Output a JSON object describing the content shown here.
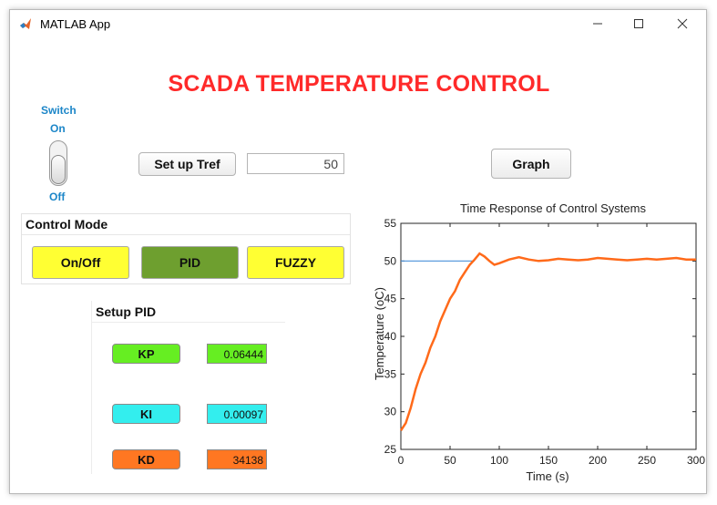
{
  "window": {
    "title": "MATLAB App",
    "icons": {
      "app": "matlab-logo-icon",
      "minimize": "minimize-icon",
      "maximize": "maximize-icon",
      "close": "close-icon"
    }
  },
  "header": {
    "title": "SCADA TEMPERATURE CONTROL",
    "color": "#ff2a2a"
  },
  "switch": {
    "label": "Switch",
    "on_label": "On",
    "off_label": "Off",
    "state": "Off"
  },
  "tref": {
    "button_label": "Set up Tref",
    "value": "50"
  },
  "graph_button": {
    "label": "Graph"
  },
  "control_mode": {
    "title": "Control Mode",
    "buttons": [
      {
        "label": "On/Off",
        "color": "#ffff33"
      },
      {
        "label": "PID",
        "color": "#6e9f2f",
        "selected": true
      },
      {
        "label": "FUZZY",
        "color": "#ffff33"
      }
    ]
  },
  "setup_pid": {
    "title": "Setup PID",
    "params": [
      {
        "label": "KP",
        "value": "0.06444",
        "color": "#66ee22"
      },
      {
        "label": "KI",
        "value": "0.00097",
        "color": "#33eeee"
      },
      {
        "label": "KD",
        "value": "34138",
        "color": "#ff7722"
      }
    ]
  },
  "chart_data": {
    "type": "line",
    "title": "Time Response of Control Systems",
    "xlabel": "Time (s)",
    "ylabel": "Temperature (oC)",
    "xlim": [
      0,
      300
    ],
    "ylim": [
      25,
      55
    ],
    "xticks": [
      0,
      50,
      100,
      150,
      200,
      250,
      300
    ],
    "yticks": [
      25,
      30,
      35,
      40,
      45,
      50,
      55
    ],
    "grid": false,
    "series": [
      {
        "role": "setpoint",
        "color": "#4a90d9",
        "x": [
          0,
          75
        ],
        "y": [
          50,
          50
        ]
      },
      {
        "role": "response",
        "color": "#ff6a1a",
        "x": [
          0,
          5,
          10,
          15,
          20,
          25,
          30,
          35,
          40,
          45,
          50,
          55,
          60,
          65,
          70,
          75,
          80,
          85,
          90,
          95,
          100,
          110,
          120,
          130,
          140,
          150,
          160,
          170,
          180,
          190,
          200,
          210,
          220,
          230,
          240,
          250,
          260,
          270,
          280,
          290,
          300
        ],
        "y": [
          27.5,
          28.5,
          30.5,
          33,
          35,
          36.5,
          38.5,
          40,
          42,
          43.5,
          45,
          46,
          47.5,
          48.5,
          49.5,
          50.2,
          51,
          50.6,
          50,
          49.5,
          49.7,
          50.2,
          50.5,
          50.2,
          50,
          50.1,
          50.3,
          50.2,
          50.1,
          50.2,
          50.4,
          50.3,
          50.2,
          50.1,
          50.2,
          50.3,
          50.2,
          50.3,
          50.4,
          50.2,
          50.2
        ]
      }
    ]
  }
}
